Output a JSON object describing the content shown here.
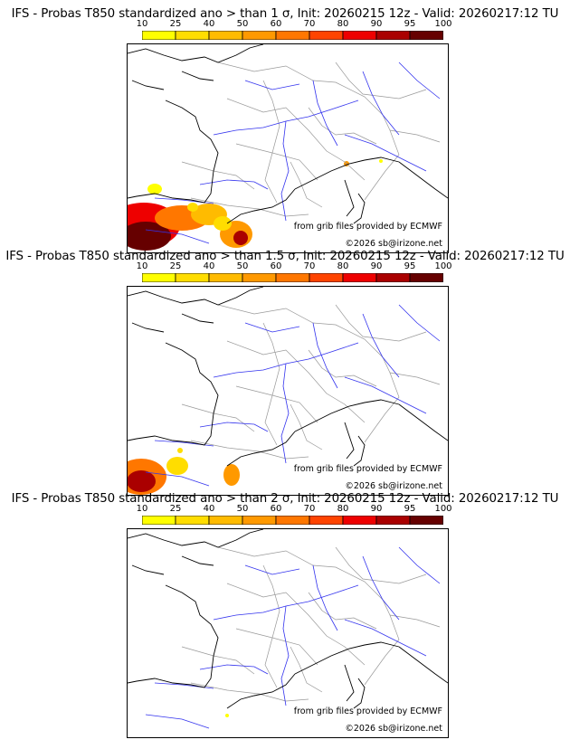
{
  "panels": [
    {
      "title": "IFS - Probas T850  standardized ano > than 1 σ, Init: 20260215 12z - Valid: 20260217:12 TU",
      "sigma": 1
    },
    {
      "title": "IFS - Probas T850  standardized ano > than 1.5 σ, Init: 20260215 12z - Valid: 20260217:12 TU",
      "sigma": 1.5
    },
    {
      "title": "IFS - Probas T850  standardized ano > than 2 σ, Init: 20260215 12z - Valid: 20260217:12 TU",
      "sigma": 2
    }
  ],
  "colorscale": {
    "ticks": [
      "10",
      "25",
      "40",
      "50",
      "60",
      "70",
      "80",
      "90",
      "95",
      "100"
    ],
    "colors": [
      "#ffff00",
      "#ffdd00",
      "#ffbb00",
      "#ff9900",
      "#ff7700",
      "#ff4400",
      "#ee0000",
      "#aa0000",
      "#660000"
    ]
  },
  "credits": {
    "source": "from grib files provided by ECMWF",
    "copyright": "©2026 sb@irizone.net"
  }
}
